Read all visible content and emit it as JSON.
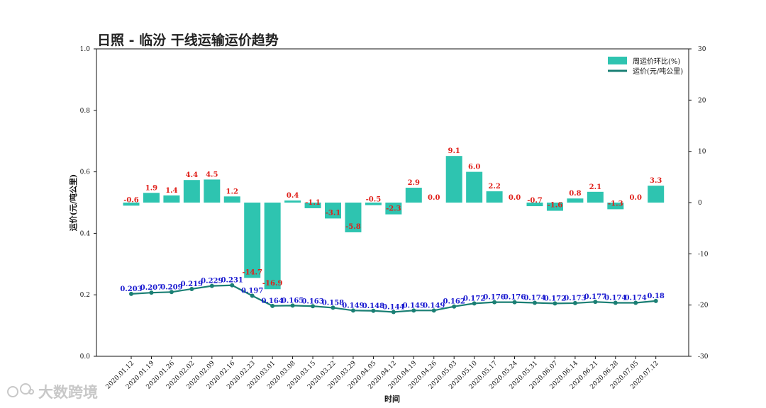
{
  "watermark": "大数跨境",
  "chart_data": {
    "type": "bar+line",
    "title": "日照 - 临汾 干线运输运价趋势",
    "xlabel": "时间",
    "ylabel": "运价(元/吨公里)",
    "ylim": [
      0.0,
      1.0
    ],
    "y2lim": [
      -30,
      30
    ],
    "yticks": [
      "0.0",
      "0.2",
      "0.4",
      "0.6",
      "0.8",
      "1.0"
    ],
    "y2ticks": [
      "-30",
      "-20",
      "-10",
      "0",
      "10",
      "20",
      "30"
    ],
    "categories": [
      "2020.01.12",
      "2020.01.19",
      "2020.01.26",
      "2020.02.02",
      "2020.02.09",
      "2020.02.16",
      "2020.02.23",
      "2020.03.01",
      "2020.03.08",
      "2020.03.15",
      "2020.03.22",
      "2020.03.29",
      "2020.04.05",
      "2020.04.12",
      "2020.04.19",
      "2020.04.26",
      "2020.05.03",
      "2020.05.10",
      "2020.05.17",
      "2020.05.24",
      "2020.05.31",
      "2020.06.07",
      "2020.06.14",
      "2020.06.21",
      "2020.06.28",
      "2020.07.05",
      "2020.07.12"
    ],
    "series": [
      {
        "name": "周运价环比(%)",
        "kind": "bar",
        "axis": "right",
        "color": "#2ec4b0",
        "label_color": "#e0201a",
        "values": [
          -0.6,
          1.9,
          1.4,
          4.4,
          4.5,
          1.2,
          -14.7,
          -16.9,
          0.4,
          -1.1,
          -3.1,
          -5.8,
          -0.5,
          -2.3,
          2.9,
          0.0,
          9.1,
          6.0,
          2.2,
          0.0,
          -0.7,
          -1.6,
          0.8,
          2.1,
          -1.3,
          0.0,
          3.3
        ]
      },
      {
        "name": "运价(元/吨公里)",
        "kind": "line",
        "axis": "left",
        "color": "#1a7f74",
        "label_color": "#1a1ad0",
        "values": [
          0.203,
          0.207,
          0.209,
          0.219,
          0.229,
          0.231,
          0.197,
          0.164,
          0.165,
          0.163,
          0.158,
          0.149,
          0.148,
          0.144,
          0.149,
          0.149,
          0.162,
          0.172,
          0.176,
          0.176,
          0.174,
          0.172,
          0.173,
          0.177,
          0.174,
          0.174,
          0.18
        ],
        "labels": [
          "0.203",
          "0.207",
          "0.209",
          "0.219",
          "0.229",
          "0.231",
          "0.197",
          "0.164",
          "0.165",
          "0.163",
          "0.158",
          "0.149",
          "0.148",
          "0.144",
          "0.149",
          "0.149",
          "0.162",
          "0.172",
          "0.176",
          "0.176",
          "0.174",
          "0.172",
          "0.173",
          "0.177",
          "0.174",
          "0.174",
          "0.18"
        ]
      }
    ],
    "legend_position": "top-right",
    "grid": false
  }
}
